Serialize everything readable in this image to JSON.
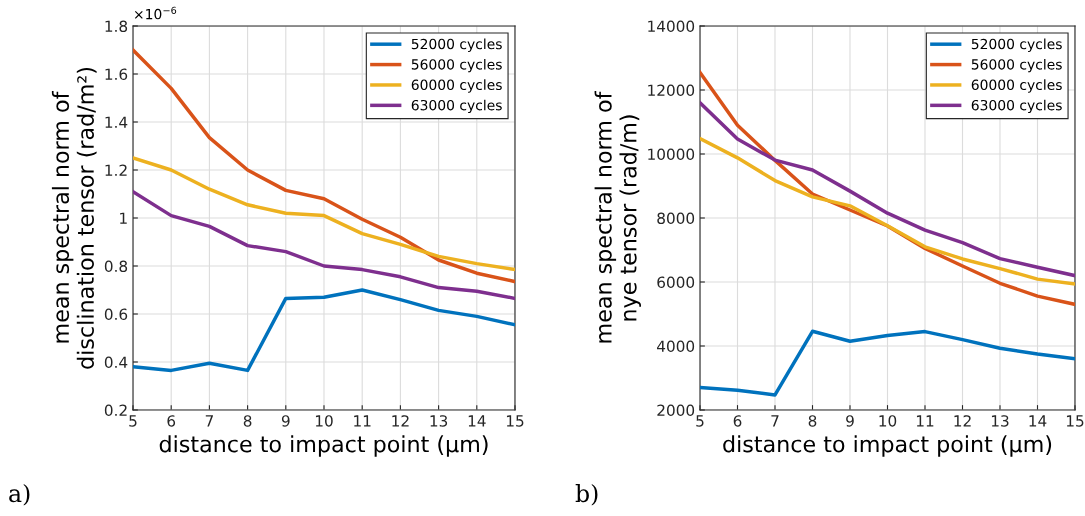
{
  "chart_data": [
    {
      "type": "line",
      "xlabel": "distance to impact point (µm)",
      "ylabel": "mean spectral norm of\ndisclination tensor (rad/m²)",
      "x": [
        5,
        6,
        7,
        8,
        9,
        10,
        11,
        12,
        13,
        14,
        15
      ],
      "series": [
        {
          "name": "52000 cycles",
          "color": "#0072bd",
          "values": [
            0.38,
            0.365,
            0.395,
            0.365,
            0.665,
            0.67,
            0.7,
            0.66,
            0.615,
            0.59,
            0.555
          ]
        },
        {
          "name": "56000 cycles",
          "color": "#d95319",
          "values": [
            1.7,
            1.54,
            1.335,
            1.2,
            1.115,
            1.08,
            0.995,
            0.92,
            0.825,
            0.77,
            0.735
          ]
        },
        {
          "name": "60000 cycles",
          "color": "#edb120",
          "values": [
            1.25,
            1.2,
            1.12,
            1.055,
            1.02,
            1.01,
            0.935,
            0.89,
            0.84,
            0.81,
            0.785
          ]
        },
        {
          "name": "63000 cycles",
          "color": "#7e2f8e",
          "values": [
            1.11,
            1.01,
            0.965,
            0.885,
            0.86,
            0.8,
            0.785,
            0.755,
            0.71,
            0.695,
            0.665
          ]
        }
      ],
      "xlim": [
        5,
        15
      ],
      "xticks": [
        5,
        6,
        7,
        8,
        9,
        10,
        11,
        12,
        13,
        14,
        15
      ],
      "ylim": [
        0.2,
        1.8
      ],
      "yticks": [
        0.2,
        0.4,
        0.6,
        0.8,
        1,
        1.2,
        1.4,
        1.6,
        1.8
      ],
      "grid": true,
      "legend": "top right",
      "annotations": [
        "×10$^{−6}$",
        "a)"
      ]
    },
    {
      "type": "line",
      "xlabel": "distance to impact point (µm)",
      "ylabel": "mean spectral norm of\nnye tensor (rad/m)",
      "x": [
        5,
        6,
        7,
        8,
        9,
        10,
        11,
        12,
        13,
        14,
        15
      ],
      "series": [
        {
          "name": "52000 cycles",
          "color": "#0072bd",
          "values": [
            2700,
            2620,
            2470,
            4460,
            4150,
            4330,
            4450,
            4200,
            3930,
            3750,
            3600
          ]
        },
        {
          "name": "56000 cycles",
          "color": "#d95319",
          "values": [
            12550,
            10900,
            9800,
            8750,
            8250,
            7750,
            7050,
            6500,
            5960,
            5560,
            5300
          ]
        },
        {
          "name": "60000 cycles",
          "color": "#edb120",
          "values": [
            10480,
            9880,
            9170,
            8660,
            8380,
            7760,
            7100,
            6720,
            6420,
            6090,
            5940
          ]
        },
        {
          "name": "63000 cycles",
          "color": "#7e2f8e",
          "values": [
            11600,
            10470,
            9810,
            9500,
            8840,
            8150,
            7620,
            7230,
            6730,
            6460,
            6200
          ]
        }
      ],
      "xlim": [
        5,
        15
      ],
      "xticks": [
        5,
        6,
        7,
        8,
        9,
        10,
        11,
        12,
        13,
        14,
        15
      ],
      "ylim": [
        2000,
        14000
      ],
      "yticks": [
        2000,
        4000,
        6000,
        8000,
        10000,
        12000,
        14000
      ],
      "grid": true,
      "legend": "top right",
      "annotations": [
        "b)"
      ]
    }
  ]
}
